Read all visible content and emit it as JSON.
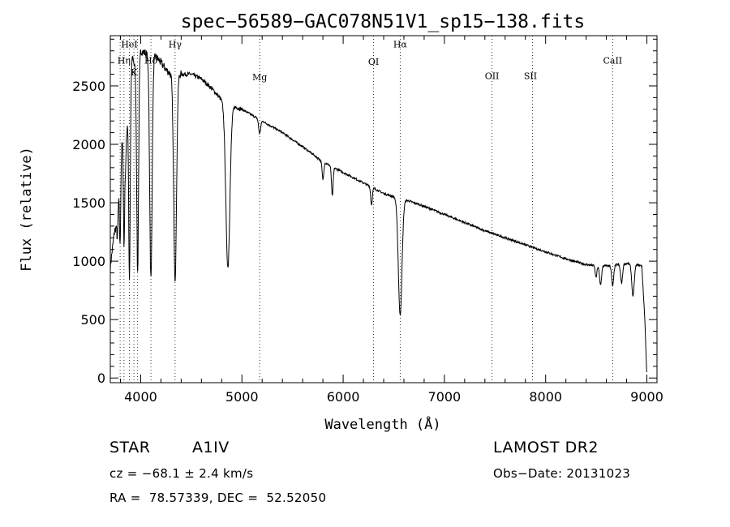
{
  "chart_data": {
    "type": "line",
    "title": "spec−56589−GAC078N51V1_sp15−138.fits",
    "xlabel": "Wavelength (Å)",
    "ylabel": "Flux (relative)",
    "xlim": [
      3700,
      9100
    ],
    "ylim": [
      -40,
      2930
    ],
    "xticks": [
      4000,
      5000,
      6000,
      7000,
      8000,
      9000
    ],
    "yticks": [
      0,
      500,
      1000,
      1500,
      2000,
      2500
    ],
    "grid": false,
    "series": [
      {
        "x": [
          3700,
          3720,
          3740,
          3760,
          3780,
          3800,
          3830,
          3850,
          3880,
          3920,
          3960,
          4000,
          4050,
          4100,
          4150,
          4200,
          4250,
          4300,
          4400,
          4500,
          4600,
          4700,
          4800,
          4900,
          5000,
          5100,
          5200,
          5400,
          5600,
          5800,
          6000,
          6200,
          6400,
          6500,
          6600,
          6700,
          6800,
          7000,
          7200,
          7400,
          7600,
          7800,
          8000,
          8200,
          8400,
          8500,
          8600,
          8700,
          8800,
          8900,
          8950,
          8980,
          9000
        ],
        "y": [
          950,
          1100,
          1250,
          1300,
          1500,
          1900,
          2100,
          1800,
          2500,
          2750,
          2600,
          2800,
          2780,
          2750,
          2750,
          2700,
          2640,
          2600,
          2600,
          2600,
          2560,
          2480,
          2380,
          2330,
          2300,
          2250,
          2200,
          2100,
          1980,
          1850,
          1760,
          1670,
          1580,
          1550,
          1530,
          1500,
          1470,
          1400,
          1330,
          1260,
          1200,
          1140,
          1080,
          1020,
          970,
          960,
          960,
          970,
          980,
          970,
          960,
          500,
          0
        ]
      }
    ],
    "absorption_lines": [
      {
        "x": 3770,
        "depth": 200,
        "w": 5
      },
      {
        "x": 3797,
        "depth": 700,
        "w": 6
      },
      {
        "x": 3835,
        "depth": 900,
        "w": 6
      },
      {
        "x": 3889,
        "depth": 1700,
        "w": 8
      },
      {
        "x": 3970,
        "depth": 1750,
        "w": 9
      },
      {
        "x": 4101,
        "depth": 1900,
        "w": 12
      },
      {
        "x": 4340,
        "depth": 1750,
        "w": 14
      },
      {
        "x": 4861,
        "depth": 1400,
        "w": 20
      },
      {
        "x": 5175,
        "depth": 120,
        "w": 10
      },
      {
        "x": 5800,
        "depth": 150,
        "w": 8
      },
      {
        "x": 5893,
        "depth": 250,
        "w": 8
      },
      {
        "x": 6280,
        "depth": 150,
        "w": 8
      },
      {
        "x": 6563,
        "depth": 1000,
        "w": 18
      },
      {
        "x": 8498,
        "depth": 100,
        "w": 8
      },
      {
        "x": 8542,
        "depth": 160,
        "w": 10
      },
      {
        "x": 8662,
        "depth": 180,
        "w": 10
      },
      {
        "x": 8750,
        "depth": 160,
        "w": 10
      },
      {
        "x": 8863,
        "depth": 270,
        "w": 12
      }
    ],
    "annotations": [
      {
        "label": "HeI",
        "x": 3888,
        "y": 2830
      },
      {
        "label": "Hη",
        "x": 3835,
        "y": 2690
      },
      {
        "label": "K",
        "x": 3933,
        "y": 2590
      },
      {
        "label": "Hδ",
        "x": 4101,
        "y": 2690
      },
      {
        "label": "Hγ",
        "x": 4340,
        "y": 2830
      },
      {
        "label": "Mg",
        "x": 5175,
        "y": 2550
      },
      {
        "label": "OI",
        "x": 6300,
        "y": 2680
      },
      {
        "label": "Hα",
        "x": 6563,
        "y": 2830
      },
      {
        "label": "OII",
        "x": 7470,
        "y": 2560
      },
      {
        "label": "SII",
        "x": 7850,
        "y": 2560
      },
      {
        "label": "CaII",
        "x": 8662,
        "y": 2690
      }
    ],
    "vlines": [
      3797,
      3835,
      3889,
      3933,
      3970,
      4101,
      4340,
      5175,
      6300,
      6563,
      7470,
      7870,
      8662
    ]
  },
  "info": {
    "object_class": "STAR",
    "subclass": "A1IV",
    "survey": "LAMOST DR2",
    "cz": "cz = −68.1 ± 2.4 km/s",
    "obs_date": "Obs−Date: 20131023",
    "coords": "RA =  78.57339, DEC =  52.52050"
  }
}
